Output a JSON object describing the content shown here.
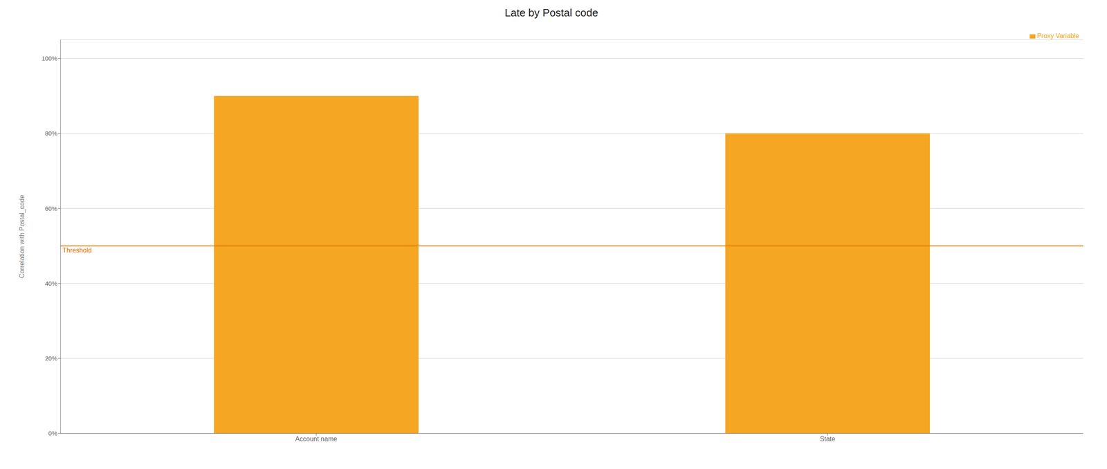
{
  "chart_data": {
    "type": "bar",
    "title": "Late by Postal code",
    "categories": [
      "Account name",
      "State"
    ],
    "series": [
      {
        "name": "Proxy Variable",
        "color": "#F5A623",
        "values": [
          0.9,
          0.8
        ]
      }
    ],
    "ylabel": "Correlation with Postal_code",
    "ylim": [
      0,
      1.05
    ],
    "yticks": [
      {
        "value": 0.0,
        "label": "0%"
      },
      {
        "value": 0.2,
        "label": "20%"
      },
      {
        "value": 0.4,
        "label": "40%"
      },
      {
        "value": 0.6,
        "label": "60%"
      },
      {
        "value": 0.8,
        "label": "80%"
      },
      {
        "value": 1.0,
        "label": "100%"
      }
    ],
    "grid": true,
    "legend": "upper right",
    "annotations": [
      {
        "text": "Threshold",
        "y": 0.5,
        "color": "#E07000"
      }
    ]
  }
}
